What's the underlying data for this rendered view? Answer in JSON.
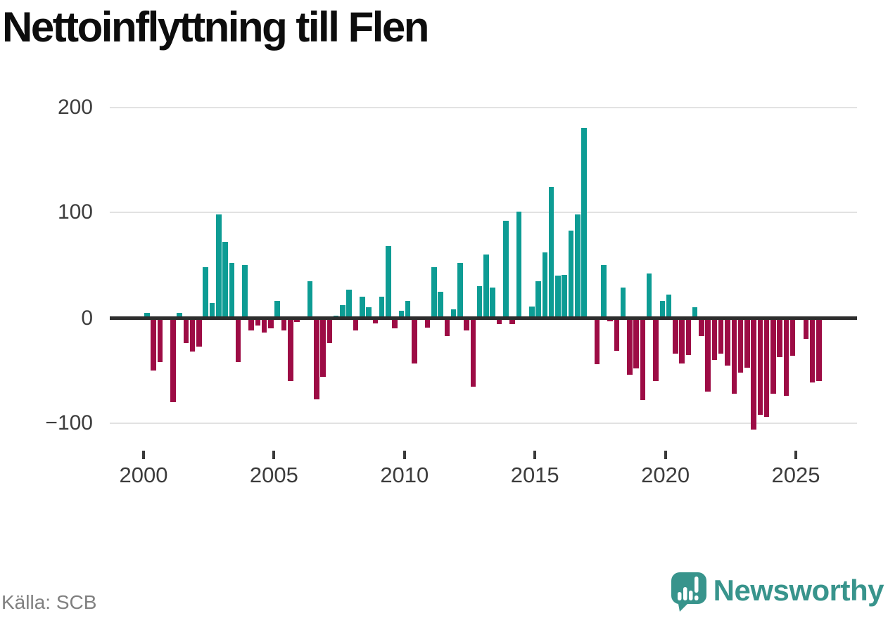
{
  "header": {
    "title": "Nettoinflyttning till Flen"
  },
  "footer": {
    "source": "Källa: SCB",
    "brand": {
      "name": "Newsworthy",
      "logo_icon": "speech-bubble-chart-exclamation"
    }
  },
  "colors": {
    "positive_bar": "#0d9c94",
    "negative_bar": "#9d0c45",
    "zero_axis": "#2d2d2d",
    "gridline": "#e2e2e2",
    "brand_teal": "#38948c"
  },
  "chart_data": {
    "type": "bar",
    "title": "Nettoinflyttning till Flen",
    "xlabel": "",
    "ylabel": "",
    "frequency": "quarterly",
    "start_year": 2000,
    "start_quarter": 1,
    "x_tick_labels": [
      "2000",
      "2005",
      "2010",
      "2015",
      "2020",
      "2025"
    ],
    "y_tick_labels": [
      "200",
      "100",
      "0",
      "−100"
    ],
    "y_tick_values": [
      200,
      100,
      0,
      -100
    ],
    "ylim": [
      -120,
      215
    ],
    "grid": "horizontal",
    "legend": "none",
    "series": [
      {
        "name": "Nettoinflyttning",
        "values": [
          5,
          -50,
          -42,
          0,
          -80,
          5,
          -24,
          -32,
          -27,
          48,
          14,
          98,
          72,
          52,
          -42,
          50,
          -12,
          -7,
          -14,
          -10,
          16,
          -12,
          -60,
          -4,
          0,
          35,
          -77,
          -56,
          -24,
          2,
          12,
          27,
          -12,
          20,
          10,
          -5,
          20,
          68,
          -10,
          7,
          16,
          -43,
          0,
          -9,
          48,
          25,
          -17,
          8,
          52,
          -12,
          -65,
          30,
          60,
          29,
          -6,
          92,
          -6,
          101,
          -2,
          11,
          35,
          62,
          124,
          40,
          41,
          83,
          98,
          180,
          0,
          -44,
          50,
          -3,
          -31,
          29,
          -54,
          -48,
          -78,
          42,
          -60,
          16,
          22,
          -34,
          -43,
          -35,
          10,
          -17,
          -70,
          -40,
          -34,
          -45,
          -72,
          -52,
          -47,
          -106,
          -92,
          -94,
          -72,
          -37,
          -74,
          -36,
          0,
          -20,
          -61,
          -60
        ]
      }
    ]
  }
}
